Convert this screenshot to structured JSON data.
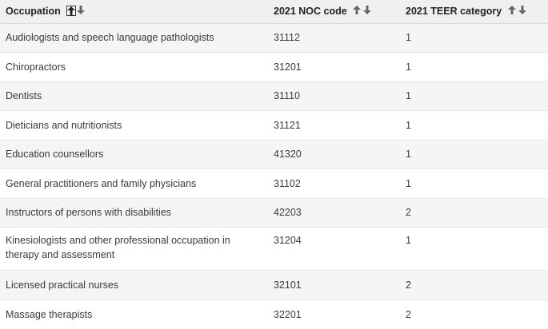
{
  "table": {
    "headers": [
      {
        "label": "Occupation",
        "sort_active": "asc"
      },
      {
        "label": "2021 NOC code",
        "sort_active": ""
      },
      {
        "label": "2021 TEER category",
        "sort_active": ""
      }
    ],
    "rows": [
      {
        "occupation": "Audiologists and speech language pathologists",
        "noc": "31112",
        "teer": "1"
      },
      {
        "occupation": "Chiropractors",
        "noc": "31201",
        "teer": "1"
      },
      {
        "occupation": "Dentists",
        "noc": "31110",
        "teer": "1"
      },
      {
        "occupation": "Dieticians and nutritionists",
        "noc": "31121",
        "teer": "1"
      },
      {
        "occupation": "Education counsellors",
        "noc": "41320",
        "teer": "1"
      },
      {
        "occupation": "General practitioners and family physicians",
        "noc": "31102",
        "teer": "1"
      },
      {
        "occupation": "Instructors of persons with disabilities",
        "noc": "42203",
        "teer": "2"
      },
      {
        "occupation": "Kinesiologists and other professional occupation in therapy and assessment",
        "noc": "31204",
        "teer": "1"
      },
      {
        "occupation": "Licensed practical nurses",
        "noc": "32101",
        "teer": "2"
      },
      {
        "occupation": "Massage therapists",
        "noc": "32201",
        "teer": "2"
      }
    ]
  },
  "icons": {
    "sort_up": "sort-ascending-arrow-icon",
    "sort_down": "sort-descending-arrow-icon"
  },
  "colors": {
    "header_bg": "#f0f0f0",
    "odd_row_bg": "#f5f5f5",
    "text": "#3a3a3a"
  }
}
